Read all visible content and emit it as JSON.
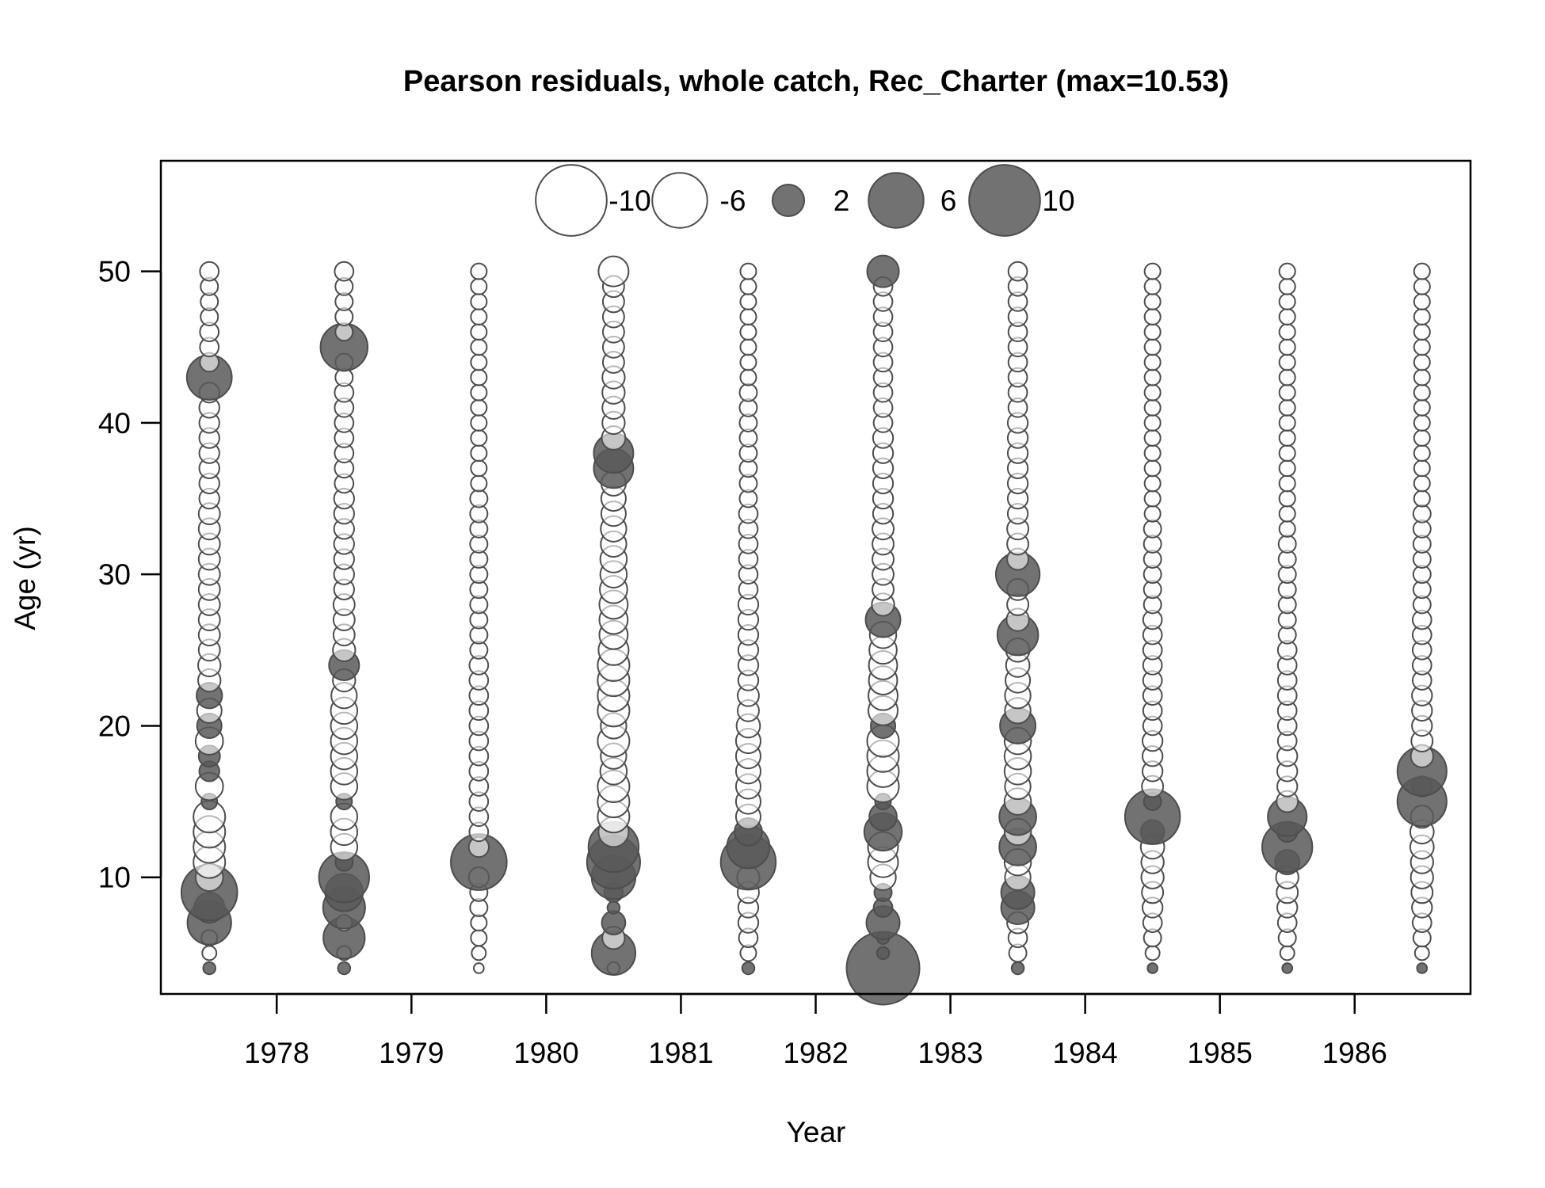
{
  "chart_data": {
    "type": "scatter",
    "subtype": "bubble",
    "title": "Pearson residuals, whole catch, Rec_Charter (max=10.53)",
    "xlabel": "Year",
    "ylabel": "Age (yr)",
    "xlim": [
      1977.14,
      1986.86
    ],
    "ylim": [
      2.3,
      57.3
    ],
    "x_ticks": [
      "1978",
      "1979",
      "1980",
      "1981",
      "1982",
      "1983",
      "1984",
      "1985",
      "1986"
    ],
    "y_ticks": [
      "10",
      "20",
      "30",
      "40",
      "50"
    ],
    "grid": false,
    "legend": {
      "placement": "top",
      "entries": [
        {
          "label": "-10",
          "value": -10
        },
        {
          "label": "-6",
          "value": -6
        },
        {
          "label": "2",
          "value": 2
        },
        {
          "label": "6",
          "value": 6
        },
        {
          "label": "10",
          "value": 10
        }
      ]
    },
    "colors": {
      "positive_fill": "#595959",
      "negative_fill": "#ffffff",
      "stroke": "#4d4d4d"
    },
    "max_abs_residual": 10.53,
    "ages": [
      4,
      5,
      6,
      7,
      8,
      9,
      10,
      11,
      12,
      13,
      14,
      15,
      16,
      17,
      18,
      19,
      20,
      21,
      22,
      23,
      24,
      25,
      26,
      27,
      28,
      29,
      30,
      31,
      32,
      33,
      34,
      35,
      36,
      37,
      38,
      39,
      40,
      41,
      42,
      43,
      44,
      45,
      46,
      47,
      48,
      49,
      50
    ],
    "series": [
      {
        "year": 1977.5,
        "residuals": [
          0.3,
          -0.4,
          -0.5,
          3.8,
          1.8,
          6.2,
          -1.5,
          -2.0,
          -2.0,
          -2.0,
          -2.0,
          0.5,
          -1.5,
          0.8,
          0.9,
          -1.5,
          1.2,
          -1.2,
          1.3,
          -1.0,
          -1.0,
          -0.9,
          -0.9,
          -0.9,
          -0.9,
          -0.9,
          -0.9,
          -0.9,
          -0.9,
          -0.9,
          -0.9,
          -0.8,
          -0.8,
          -0.8,
          -0.8,
          -0.8,
          -0.8,
          -0.8,
          -0.8,
          4.0,
          -0.7,
          -0.7,
          -0.7,
          -0.6,
          -0.6,
          -0.6,
          -0.7
        ]
      },
      {
        "year": 1978.5,
        "residuals": [
          0.3,
          -0.4,
          3.4,
          -0.5,
          3.5,
          2.8,
          5.0,
          0.6,
          -1.4,
          -1.4,
          -1.4,
          0.5,
          -1.4,
          -1.4,
          -1.4,
          -1.4,
          -1.4,
          -1.4,
          -1.3,
          -1.0,
          1.8,
          -1.0,
          -0.9,
          -0.9,
          -0.9,
          -0.8,
          -0.8,
          -0.8,
          -0.8,
          -0.8,
          -0.8,
          -0.8,
          -0.7,
          -0.7,
          -0.7,
          -0.7,
          -0.7,
          -0.7,
          -0.7,
          -0.6,
          -0.6,
          4.4,
          -0.6,
          -0.6,
          -0.6,
          -0.6,
          -0.7
        ]
      },
      {
        "year": 1979.5,
        "residuals": [
          -0.2,
          -0.4,
          -0.5,
          -0.5,
          -0.6,
          -0.6,
          -0.8,
          6.2,
          -0.8,
          -0.7,
          -0.7,
          -0.7,
          -0.7,
          -0.7,
          -0.7,
          -0.7,
          -0.7,
          -0.7,
          -0.7,
          -0.7,
          -0.7,
          -0.6,
          -0.6,
          -0.6,
          -0.6,
          -0.6,
          -0.6,
          -0.6,
          -0.6,
          -0.6,
          -0.6,
          -0.6,
          -0.5,
          -0.5,
          -0.5,
          -0.5,
          -0.5,
          -0.5,
          -0.5,
          -0.5,
          -0.5,
          -0.5,
          -0.5,
          -0.5,
          -0.5,
          -0.5,
          -0.5
        ]
      },
      {
        "year": 1980.5,
        "residuals": [
          -0.3,
          3.8,
          -1.0,
          1.1,
          0.3,
          0.7,
          3.8,
          5.6,
          5.0,
          -1.8,
          -2.0,
          -2.0,
          -2.0,
          -1.4,
          -1.3,
          -2.0,
          -1.3,
          -2.0,
          -2.0,
          -2.0,
          -2.0,
          -1.8,
          -1.6,
          -1.6,
          -1.6,
          -1.5,
          -1.4,
          -1.4,
          -1.3,
          -1.3,
          -1.2,
          -1.2,
          -1.2,
          3.1,
          3.1,
          -1.1,
          -1.0,
          -1.0,
          -1.0,
          -1.0,
          -0.9,
          -0.9,
          -0.9,
          -0.9,
          -0.9,
          -0.9,
          -1.8
        ]
      },
      {
        "year": 1981.5,
        "residuals": [
          0.3,
          -0.5,
          -0.7,
          -0.8,
          -0.8,
          -0.9,
          -1.0,
          6.0,
          3.6,
          1.5,
          -1.2,
          -1.2,
          -1.2,
          -1.2,
          -1.2,
          -1.2,
          -1.1,
          -0.9,
          -0.9,
          -0.8,
          -0.8,
          -0.8,
          -0.8,
          -0.8,
          -0.8,
          -0.7,
          -0.7,
          -0.7,
          -0.7,
          -0.7,
          -0.7,
          -0.6,
          -0.6,
          -0.6,
          -0.6,
          -0.6,
          -0.6,
          -0.6,
          -0.6,
          -0.5,
          -0.5,
          -0.5,
          -0.5,
          -0.5,
          -0.5,
          -0.5,
          -0.5
        ]
      },
      {
        "year": 1982.5,
        "residuals": [
          10.53,
          0.3,
          0.3,
          2.2,
          0.7,
          0.6,
          -1.3,
          -1.8,
          -1.8,
          2.8,
          1.5,
          0.5,
          -2.0,
          -2.0,
          -2.0,
          -2.0,
          1.2,
          -1.7,
          -1.7,
          -1.6,
          -1.6,
          -1.5,
          -1.4,
          2.4,
          -1.0,
          -0.9,
          -0.9,
          -0.9,
          -0.9,
          -0.9,
          -0.8,
          -0.8,
          -0.8,
          -0.8,
          -0.8,
          -0.8,
          -0.7,
          -0.7,
          -0.7,
          -0.7,
          -0.7,
          -0.7,
          -0.7,
          -0.7,
          -0.7,
          -0.7,
          2.0
        ]
      },
      {
        "year": 1983.5,
        "residuals": [
          0.3,
          -0.6,
          -0.7,
          -0.9,
          2.2,
          2.2,
          -1.3,
          -1.4,
          2.7,
          -1.4,
          2.7,
          -1.4,
          -1.3,
          -1.4,
          -1.4,
          -1.4,
          2.5,
          -1.3,
          -1.3,
          -1.2,
          -1.1,
          -1.1,
          3.3,
          -1.0,
          -0.9,
          -0.9,
          3.8,
          -0.9,
          -0.9,
          -0.9,
          -0.8,
          -0.8,
          -0.8,
          -0.8,
          -0.8,
          -0.8,
          -0.8,
          -0.7,
          -0.7,
          -0.7,
          -0.7,
          -0.7,
          -0.7,
          -0.7,
          -0.7,
          -0.7,
          -0.7
        ]
      },
      {
        "year": 1984.5,
        "residuals": [
          0.2,
          -0.4,
          -0.6,
          -0.7,
          -0.8,
          -0.9,
          -1.0,
          -1.0,
          -1.1,
          1.1,
          6.0,
          0.6,
          -0.9,
          -0.8,
          -0.8,
          -0.8,
          -0.7,
          -0.7,
          -0.7,
          -0.7,
          -0.7,
          -0.7,
          -0.7,
          -0.7,
          -0.6,
          -0.6,
          -0.6,
          -0.6,
          -0.6,
          -0.6,
          -0.5,
          -0.5,
          -0.5,
          -0.5,
          -0.5,
          -0.5,
          -0.5,
          -0.5,
          -0.5,
          -0.5,
          -0.5,
          -0.5,
          -0.5,
          -0.5,
          -0.5,
          -0.5,
          -0.5
        ]
      },
      {
        "year": 1985.5,
        "residuals": [
          0.2,
          -0.4,
          -0.6,
          -0.7,
          -0.8,
          -0.9,
          -1.0,
          1.2,
          5.0,
          0.8,
          3.0,
          -0.9,
          -0.8,
          -0.8,
          -0.8,
          -0.7,
          -0.7,
          -0.7,
          -0.7,
          -0.7,
          -0.7,
          -0.7,
          -0.6,
          -0.6,
          -0.6,
          -0.6,
          -0.6,
          -0.6,
          -0.6,
          -0.5,
          -0.5,
          -0.5,
          -0.5,
          -0.5,
          -0.5,
          -0.5,
          -0.5,
          -0.5,
          -0.5,
          -0.5,
          -0.5,
          -0.5,
          -0.5,
          -0.5,
          -0.5,
          -0.5,
          -0.5
        ]
      },
      {
        "year": 1986.5,
        "residuals": [
          0.2,
          -0.4,
          -0.6,
          -0.7,
          -0.8,
          -0.9,
          -1.0,
          -1.0,
          -1.1,
          -1.1,
          -1.0,
          4.8,
          0.8,
          4.8,
          -1.0,
          -0.9,
          -0.8,
          -0.8,
          -0.8,
          -0.7,
          -0.7,
          -0.7,
          -0.7,
          -0.7,
          -0.6,
          -0.6,
          -0.6,
          -0.6,
          -0.6,
          -0.6,
          -0.6,
          -0.5,
          -0.5,
          -0.5,
          -0.5,
          -0.5,
          -0.5,
          -0.5,
          -0.5,
          -0.5,
          -0.5,
          -0.5,
          -0.5,
          -0.5,
          -0.5,
          -0.5,
          -0.5
        ]
      }
    ]
  }
}
